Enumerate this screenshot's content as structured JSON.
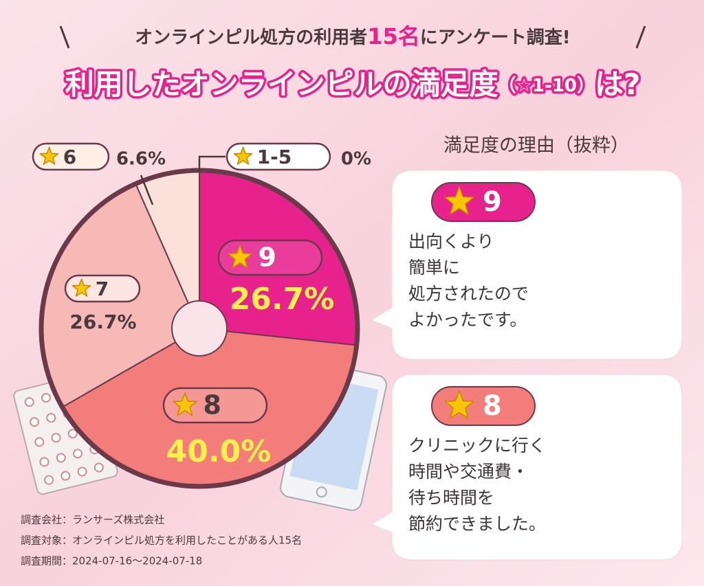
{
  "chart_data": {
    "type": "pie",
    "subtitle": [
      "オンラインピル処方の利用者",
      "15名",
      "にアンケート調査!"
    ],
    "title": [
      "利用したオンラインピルの満足度",
      "（☆1-10）",
      "は?"
    ],
    "categories": [
      "9",
      "8",
      "7",
      "6",
      "1-5"
    ],
    "values": [
      26.7,
      40.0,
      26.7,
      6.6,
      0
    ],
    "value_labels": [
      "26.7%",
      "40.0%",
      "26.7%",
      "6.6%",
      "0%"
    ],
    "colors": [
      "#e8228c",
      "#f27d7b",
      "#f6b9b5",
      "#fbe1da",
      "#ffffff"
    ],
    "reasons_heading": "満足度の理由（抜粋）",
    "reasons": [
      {
        "rating": "9",
        "color": "#e8228c",
        "lines": [
          "出向くより",
          "簡単に",
          "処方されたので",
          "よかったです。"
        ]
      },
      {
        "rating": "8",
        "color": "#f27d7b",
        "lines": [
          "クリニックに行く",
          "時間や交通費・",
          "待ち時間を",
          "節約できました。"
        ]
      }
    ],
    "notes": [
      "調査会社：ランサーズ株式会社",
      "調査対象：オンラインピル処方を利用したことがある人15名",
      "調査期間：2024-07-16〜2024-07-18"
    ]
  }
}
